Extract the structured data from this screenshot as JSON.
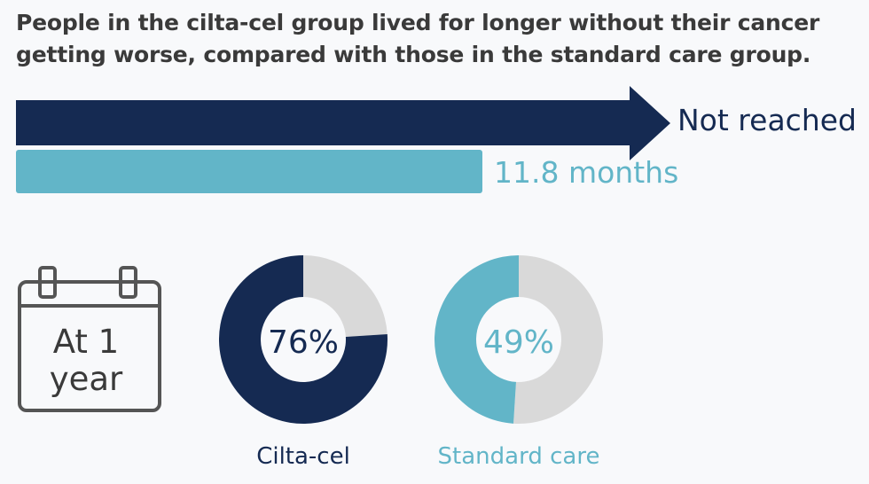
{
  "headline": {
    "line1": "People in the cilta-cel group lived for longer without their cancer",
    "line2": "getting worse, compared with those in the standard care group."
  },
  "chart_data": [
    {
      "type": "bar",
      "categories": [
        "Cilta-cel",
        "Standard care"
      ],
      "values": [
        null,
        11.8
      ],
      "labels": [
        "Not reached",
        "11.8 months"
      ]
    },
    {
      "type": "pie",
      "label": "At 1 year",
      "label_lines": [
        "At 1",
        "year"
      ],
      "series": [
        {
          "name": "Cilta-cel",
          "value": 76,
          "value_label": "76%"
        },
        {
          "name": "Standard care",
          "value": 49,
          "value_label": "49%"
        }
      ]
    }
  ],
  "colors": {
    "navy": "#152a52",
    "teal": "#62b5c8",
    "remainder": "#d9d9d9",
    "text": "#3a3a3a",
    "icon": "#555555"
  },
  "icons": [
    "calendar-icon"
  ]
}
